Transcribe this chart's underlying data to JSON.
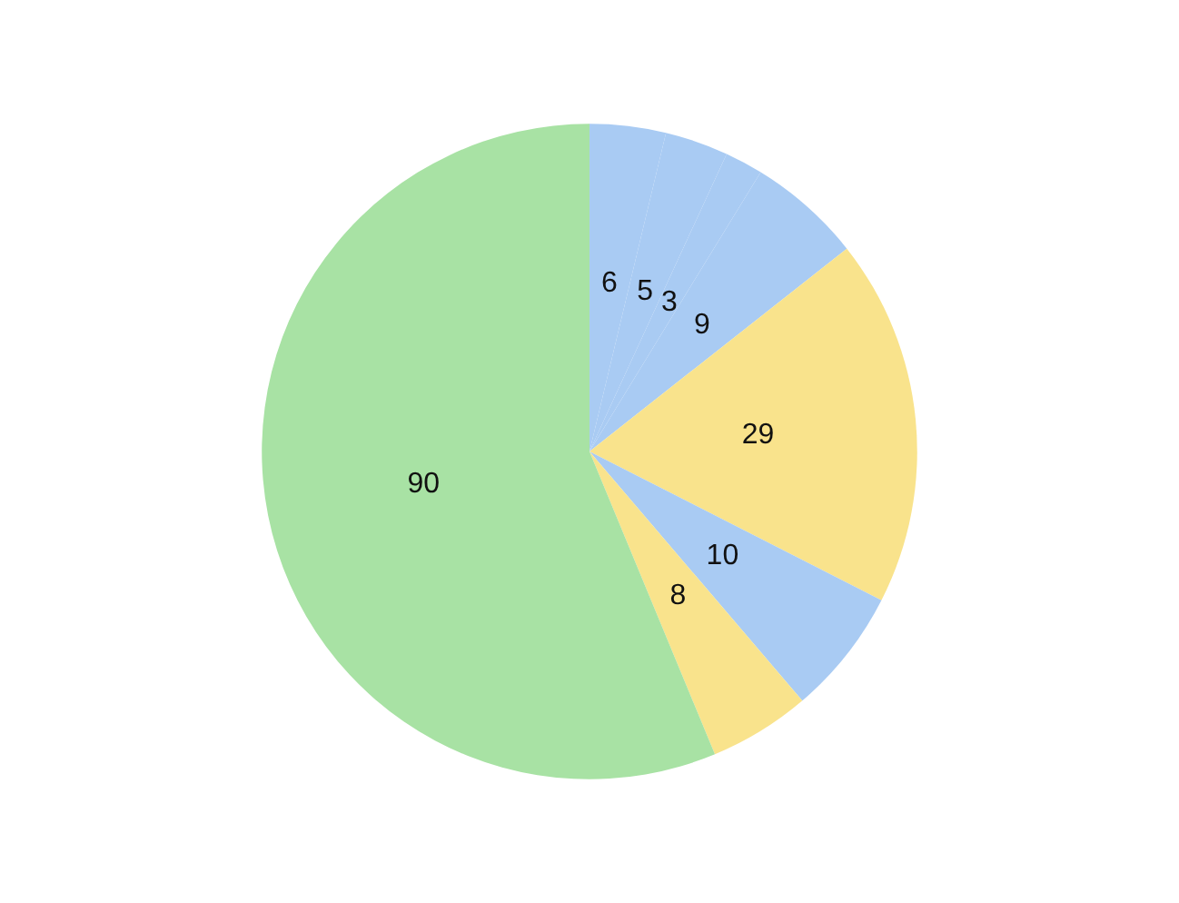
{
  "chart_data": {
    "type": "pie",
    "categories": [
      null,
      null,
      null,
      null,
      null,
      null,
      null,
      null
    ],
    "values": [
      6,
      5,
      3,
      9,
      29,
      10,
      8,
      90
    ],
    "colors": [
      "#a9cbf3",
      "#a9cbf3",
      "#a9cbf3",
      "#a9cbf3",
      "#f9e38c",
      "#a9cbf3",
      "#f9e38c",
      "#a8e2a4"
    ],
    "data_labels": true
  }
}
